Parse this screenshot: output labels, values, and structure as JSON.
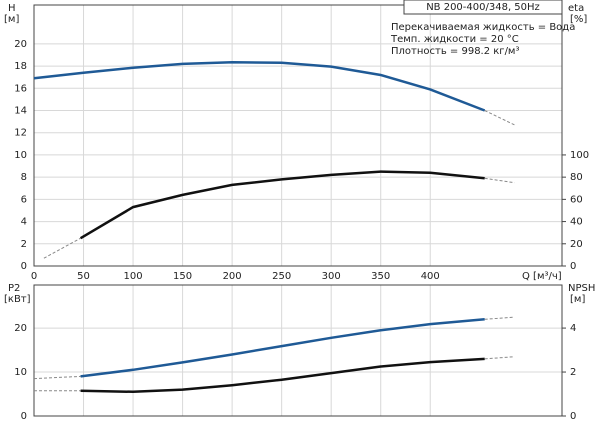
{
  "chart_data": [
    {
      "type": "line",
      "title": "NB 200-400/348, 50Hz",
      "notes": [
        "Перекачиваемая жидкость = Вода",
        "Темп. жидкости = 20 °C",
        "Плотность = 998.2 кг/м³"
      ],
      "ylabel": "H",
      "yunit": "[м]",
      "y2label": "eta",
      "y2unit": "[%]",
      "xlabel": "Q [м³/ч]",
      "xlim": [
        0,
        533
      ],
      "xticks": [
        0,
        50,
        100,
        150,
        200,
        250,
        300,
        350,
        400
      ],
      "ylim": [
        0,
        23.5
      ],
      "yticks": [
        0,
        2,
        4,
        6,
        8,
        10,
        12,
        14,
        16,
        18,
        20
      ],
      "y2lim": [
        0,
        235
      ],
      "y2ticks": [
        0,
        20,
        40,
        60,
        80,
        100
      ],
      "grid": true,
      "show_xtick_labels": true,
      "series": [
        {
          "color": "#1f5a96",
          "dashed": false,
          "x": [
            0,
            50,
            100,
            150,
            200,
            250,
            300,
            350,
            400,
            455
          ],
          "values": [
            16.9,
            17.4,
            17.85,
            18.2,
            18.35,
            18.3,
            17.95,
            17.2,
            15.9,
            14.0
          ]
        },
        {
          "color": "#888888",
          "dashed": true,
          "x": [
            455,
            485
          ],
          "values": [
            14.0,
            12.7
          ]
        },
        {
          "color": "#888888",
          "dashed": true,
          "axis": "y2",
          "x": [
            10,
            47
          ],
          "values": [
            7,
            25
          ]
        },
        {
          "color": "#111111",
          "dashed": false,
          "axis": "y2",
          "x": [
            47,
            100,
            150,
            200,
            250,
            300,
            350,
            400,
            455
          ],
          "values": [
            25,
            53,
            64,
            73,
            78,
            82,
            85,
            84,
            79
          ]
        },
        {
          "color": "#888888",
          "dashed": true,
          "axis": "y2",
          "x": [
            455,
            485
          ],
          "values": [
            79,
            75
          ]
        }
      ]
    },
    {
      "type": "line",
      "ylabel": "P2",
      "yunit": "[кВт]",
      "y2label": "NPSH",
      "y2unit": "[м]",
      "xlim": [
        0,
        533
      ],
      "xticks": [
        0,
        50,
        100,
        150,
        200,
        250,
        300,
        350,
        400
      ],
      "ylim": [
        0,
        29.8
      ],
      "yticks": [
        0,
        10,
        20
      ],
      "y2lim": [
        0,
        5.96
      ],
      "y2ticks": [
        0,
        2,
        4
      ],
      "grid": true,
      "show_xtick_labels": false,
      "series": [
        {
          "color": "#888888",
          "dashed": true,
          "x": [
            0,
            47
          ],
          "values": [
            8.5,
            9.0
          ]
        },
        {
          "color": "#1f5a96",
          "dashed": false,
          "x": [
            47,
            100,
            150,
            200,
            250,
            300,
            350,
            400,
            455
          ],
          "values": [
            9.0,
            10.5,
            12.2,
            14.0,
            15.9,
            17.8,
            19.5,
            20.9,
            22.0
          ]
        },
        {
          "color": "#888888",
          "dashed": true,
          "x": [
            455,
            485
          ],
          "values": [
            22.0,
            22.5
          ]
        },
        {
          "color": "#888888",
          "dashed": true,
          "axis": "y2",
          "x": [
            0,
            47
          ],
          "values": [
            1.15,
            1.15
          ]
        },
        {
          "color": "#111111",
          "dashed": false,
          "axis": "y2",
          "x": [
            47,
            100,
            150,
            200,
            250,
            300,
            350,
            400,
            455
          ],
          "values": [
            1.15,
            1.1,
            1.2,
            1.4,
            1.65,
            1.95,
            2.25,
            2.45,
            2.6
          ]
        },
        {
          "color": "#888888",
          "dashed": true,
          "axis": "y2",
          "x": [
            455,
            485
          ],
          "values": [
            2.6,
            2.7
          ]
        }
      ]
    }
  ]
}
